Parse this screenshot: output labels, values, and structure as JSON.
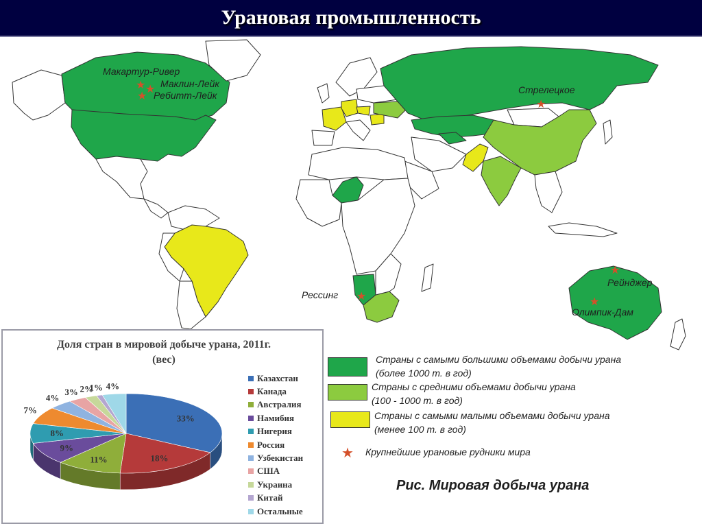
{
  "header": {
    "title": "Урановая промышленность"
  },
  "colors": {
    "top": "#1fa64a",
    "middle": "#8ccb3f",
    "low": "#e8e81a",
    "none": "#ffffff",
    "border": "#333333",
    "star": "#d4502a",
    "title_bg": "#000040"
  },
  "mines": [
    {
      "name": "Макартур-Ривер"
    },
    {
      "name": "Маклин-Лейк"
    },
    {
      "name": "Ребитт-Лейк"
    },
    {
      "name": "Стрелецкое"
    },
    {
      "name": "Рессинг"
    },
    {
      "name": "Рейнджер"
    },
    {
      "name": "Олимпик-Дам"
    }
  ],
  "legend": {
    "top_line1": "Страны с самыми большими объемами добычи урана",
    "top_line2": "(более 1000 т. в год)",
    "middle_line1": "Страны с средними объемами добычи урана",
    "middle_line2": "(100 - 1000 т. в год)",
    "low_line1": "Страны с самыми малыми объемами добычи урана",
    "low_line2": "(менее 100 т. в год)",
    "mines": "Крупнейшие урановые рудники мира",
    "star_icon": "star-icon"
  },
  "caption": "Рис. Мировая добыча урана",
  "chart_data": {
    "type": "pie",
    "title": "Доля стран в мировой добыче урана, 2011г.",
    "subtitle": "(вес)",
    "categories": [
      "Казахстан",
      "Канада",
      "Австралия",
      "Намибия",
      "Нигерия",
      "Россия",
      "Узбекистан",
      "США",
      "Украина",
      "Китай",
      "Остальные"
    ],
    "values": [
      33,
      18,
      11,
      9,
      8,
      7,
      4,
      3,
      2,
      1,
      4
    ],
    "labels": [
      "33%",
      "18%",
      "11%",
      "9%",
      "8%",
      "7%",
      "4%",
      "3%",
      "2%",
      "1%",
      "4%"
    ],
    "colors": [
      "#3b6fb6",
      "#b53a3a",
      "#8fae3a",
      "#6a4c9c",
      "#2f9cb0",
      "#ee8a2f",
      "#8fb3e0",
      "#e8a4a4",
      "#c6d89a",
      "#b4a6d0",
      "#9fd8e8"
    ],
    "legend_position": "right"
  }
}
